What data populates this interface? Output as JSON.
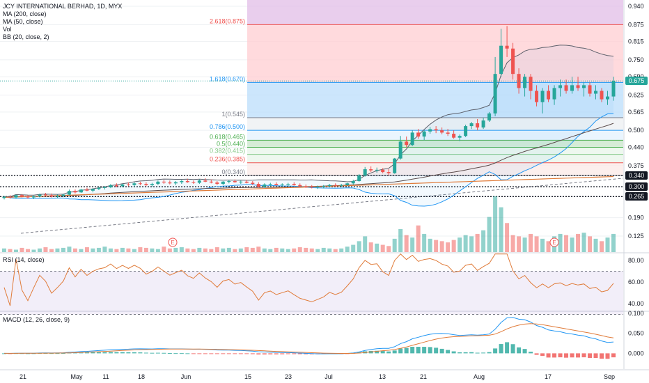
{
  "legend": {
    "title": "JCY INTERNATIONAL BERHAD, 1D, MYX",
    "ma200": "MA (200, close)",
    "ma50": "MA (50, close)",
    "vol": "Vol",
    "bb": "BB (20, close, 2)"
  },
  "panes": {
    "rsi": {
      "label": "RSI (14, close)"
    },
    "macd": {
      "label": "MACD (12, 26, close, 9)"
    }
  },
  "price_tags": {
    "last": {
      "text": "0.675",
      "color": "#26a69a"
    },
    "line1": {
      "text": "0.340",
      "color": "#131722"
    },
    "line2": {
      "text": "0.300",
      "color": "#131722"
    },
    "line3": {
      "text": "0.265",
      "color": "#131722"
    }
  },
  "colors": {
    "up": "#26a69a",
    "down": "#ef5350",
    "ma200": "#e07b39",
    "ma50": "#5a4a4a",
    "bb_upper": "#5d606b",
    "bb_lower": "#2196f3",
    "bb_basis": "#2196f3",
    "rsi": "#e07b39",
    "macd": "#2196f3",
    "signal": "#e07b39",
    "grid": "#eef0f3"
  },
  "chart_data": {
    "type": "candlestick",
    "symbol": "JCY INTERNATIONAL BERHAD",
    "timeframe": "1D",
    "exchange": "MYX",
    "y_ticks": [
      0.94,
      0.875,
      0.815,
      0.75,
      0.69,
      0.625,
      0.565,
      0.5,
      0.44,
      0.375,
      0.34,
      0.3,
      0.265,
      0.19,
      0.125
    ],
    "y_tick_labels": [
      "0.940",
      "0.875",
      "0.815",
      "0.750",
      "0.690",
      "0.625",
      "0.565",
      "0.500",
      "0.440",
      "0.375",
      "0.340",
      "0.300",
      "0.265",
      "0.190",
      "0.125"
    ],
    "x_labels": [
      "21",
      "May",
      "11",
      "18",
      "Jun",
      "15",
      "23",
      "Jul",
      "13",
      "21",
      "Aug",
      "17",
      "Sep"
    ],
    "fib_levels": [
      {
        "label": "2.618(0.875)",
        "value": 0.875
      },
      {
        "label": "1.618(0.670)",
        "value": 0.67
      },
      {
        "label": "1(0.545)",
        "value": 0.545
      },
      {
        "label": "0.786(0.500)",
        "value": 0.5
      },
      {
        "label": "0.618(0.465)",
        "value": 0.465
      },
      {
        "label": "0.5(0.440)",
        "value": 0.44
      },
      {
        "label": "0.382(0.415)",
        "value": 0.415
      },
      {
        "label": "0.236(0.385)",
        "value": 0.385
      },
      {
        "label": "0(0.340)",
        "value": 0.34
      }
    ],
    "horizontal_lines": [
      0.34,
      0.3,
      0.265
    ],
    "candles": [
      [
        0.26,
        0.268,
        0.255,
        0.264
      ],
      [
        0.264,
        0.27,
        0.258,
        0.262
      ],
      [
        0.262,
        0.272,
        0.258,
        0.27
      ],
      [
        0.27,
        0.274,
        0.262,
        0.265
      ],
      [
        0.265,
        0.27,
        0.258,
        0.262
      ],
      [
        0.262,
        0.268,
        0.256,
        0.266
      ],
      [
        0.266,
        0.275,
        0.262,
        0.272
      ],
      [
        0.272,
        0.278,
        0.268,
        0.27
      ],
      [
        0.27,
        0.276,
        0.262,
        0.265
      ],
      [
        0.265,
        0.272,
        0.26,
        0.268
      ],
      [
        0.268,
        0.275,
        0.264,
        0.272
      ],
      [
        0.272,
        0.29,
        0.27,
        0.285
      ],
      [
        0.285,
        0.29,
        0.276,
        0.28
      ],
      [
        0.28,
        0.292,
        0.278,
        0.29
      ],
      [
        0.29,
        0.296,
        0.284,
        0.286
      ],
      [
        0.286,
        0.294,
        0.28,
        0.292
      ],
      [
        0.292,
        0.3,
        0.288,
        0.296
      ],
      [
        0.296,
        0.302,
        0.29,
        0.298
      ],
      [
        0.298,
        0.31,
        0.295,
        0.305
      ],
      [
        0.305,
        0.312,
        0.298,
        0.302
      ],
      [
        0.302,
        0.31,
        0.298,
        0.308
      ],
      [
        0.308,
        0.315,
        0.302,
        0.306
      ],
      [
        0.306,
        0.316,
        0.3,
        0.312
      ],
      [
        0.312,
        0.318,
        0.305,
        0.31
      ],
      [
        0.31,
        0.316,
        0.302,
        0.306
      ],
      [
        0.306,
        0.314,
        0.3,
        0.31
      ],
      [
        0.31,
        0.322,
        0.306,
        0.318
      ],
      [
        0.318,
        0.325,
        0.31,
        0.315
      ],
      [
        0.315,
        0.322,
        0.308,
        0.312
      ],
      [
        0.312,
        0.32,
        0.306,
        0.316
      ],
      [
        0.316,
        0.324,
        0.31,
        0.32
      ],
      [
        0.32,
        0.328,
        0.314,
        0.316
      ],
      [
        0.316,
        0.322,
        0.31,
        0.314
      ],
      [
        0.314,
        0.326,
        0.31,
        0.322
      ],
      [
        0.322,
        0.33,
        0.316,
        0.318
      ],
      [
        0.318,
        0.326,
        0.312,
        0.315
      ],
      [
        0.315,
        0.32,
        0.306,
        0.31
      ],
      [
        0.31,
        0.32,
        0.306,
        0.318
      ],
      [
        0.318,
        0.324,
        0.312,
        0.32
      ],
      [
        0.32,
        0.326,
        0.314,
        0.316
      ],
      [
        0.316,
        0.322,
        0.31,
        0.318
      ],
      [
        0.318,
        0.324,
        0.312,
        0.314
      ],
      [
        0.314,
        0.32,
        0.306,
        0.31
      ],
      [
        0.31,
        0.316,
        0.296,
        0.3
      ],
      [
        0.3,
        0.312,
        0.296,
        0.308
      ],
      [
        0.308,
        0.314,
        0.302,
        0.31
      ],
      [
        0.31,
        0.316,
        0.304,
        0.306
      ],
      [
        0.306,
        0.312,
        0.3,
        0.308
      ],
      [
        0.308,
        0.314,
        0.302,
        0.31
      ],
      [
        0.31,
        0.316,
        0.304,
        0.306
      ],
      [
        0.306,
        0.312,
        0.298,
        0.302
      ],
      [
        0.302,
        0.308,
        0.296,
        0.3
      ],
      [
        0.3,
        0.306,
        0.294,
        0.298
      ],
      [
        0.298,
        0.304,
        0.292,
        0.3
      ],
      [
        0.3,
        0.306,
        0.294,
        0.302
      ],
      [
        0.302,
        0.31,
        0.298,
        0.306
      ],
      [
        0.306,
        0.312,
        0.3,
        0.304
      ],
      [
        0.304,
        0.31,
        0.298,
        0.306
      ],
      [
        0.306,
        0.314,
        0.302,
        0.312
      ],
      [
        0.312,
        0.325,
        0.308,
        0.32
      ],
      [
        0.32,
        0.345,
        0.318,
        0.34
      ],
      [
        0.34,
        0.37,
        0.336,
        0.362
      ],
      [
        0.362,
        0.372,
        0.352,
        0.358
      ],
      [
        0.358,
        0.368,
        0.35,
        0.36
      ],
      [
        0.36,
        0.366,
        0.348,
        0.352
      ],
      [
        0.352,
        0.362,
        0.34,
        0.348
      ],
      [
        0.348,
        0.402,
        0.346,
        0.4
      ],
      [
        0.4,
        0.48,
        0.396,
        0.46
      ],
      [
        0.46,
        0.478,
        0.44,
        0.448
      ],
      [
        0.448,
        0.5,
        0.444,
        0.492
      ],
      [
        0.492,
        0.505,
        0.47,
        0.478
      ],
      [
        0.478,
        0.5,
        0.465,
        0.496
      ],
      [
        0.496,
        0.512,
        0.488,
        0.504
      ],
      [
        0.504,
        0.515,
        0.49,
        0.5
      ],
      [
        0.5,
        0.51,
        0.486,
        0.492
      ],
      [
        0.492,
        0.505,
        0.48,
        0.488
      ],
      [
        0.488,
        0.5,
        0.47,
        0.474
      ],
      [
        0.474,
        0.485,
        0.462,
        0.48
      ],
      [
        0.48,
        0.52,
        0.476,
        0.515
      ],
      [
        0.515,
        0.53,
        0.505,
        0.525
      ],
      [
        0.525,
        0.54,
        0.5,
        0.51
      ],
      [
        0.51,
        0.545,
        0.505,
        0.535
      ],
      [
        0.535,
        0.565,
        0.53,
        0.56
      ],
      [
        0.56,
        0.76,
        0.55,
        0.7
      ],
      [
        0.7,
        0.86,
        0.69,
        0.8
      ],
      [
        0.8,
        0.87,
        0.76,
        0.79
      ],
      [
        0.79,
        0.81,
        0.68,
        0.7
      ],
      [
        0.7,
        0.72,
        0.63,
        0.65
      ],
      [
        0.65,
        0.7,
        0.62,
        0.69
      ],
      [
        0.69,
        0.7,
        0.61,
        0.64
      ],
      [
        0.64,
        0.66,
        0.585,
        0.6
      ],
      [
        0.6,
        0.65,
        0.56,
        0.64
      ],
      [
        0.64,
        0.66,
        0.6,
        0.61
      ],
      [
        0.61,
        0.66,
        0.59,
        0.65
      ],
      [
        0.65,
        0.68,
        0.62,
        0.66
      ],
      [
        0.66,
        0.68,
        0.63,
        0.64
      ],
      [
        0.64,
        0.69,
        0.63,
        0.66
      ],
      [
        0.66,
        0.69,
        0.64,
        0.65
      ],
      [
        0.65,
        0.67,
        0.62,
        0.66
      ],
      [
        0.66,
        0.67,
        0.62,
        0.63
      ],
      [
        0.63,
        0.66,
        0.61,
        0.64
      ],
      [
        0.64,
        0.65,
        0.6,
        0.61
      ],
      [
        0.61,
        0.64,
        0.59,
        0.62
      ],
      [
        0.62,
        0.69,
        0.605,
        0.675
      ]
    ],
    "volume": [
      6,
      5,
      4,
      7,
      5,
      4,
      6,
      8,
      5,
      6,
      7,
      9,
      6,
      5,
      8,
      6,
      7,
      9,
      6,
      5,
      7,
      6,
      5,
      8,
      7,
      6,
      5,
      9,
      6,
      7,
      8,
      6,
      5,
      7,
      6,
      5,
      8,
      6,
      7,
      5,
      6,
      8,
      7,
      9,
      6,
      5,
      7,
      6,
      5,
      6,
      8,
      7,
      6,
      5,
      7,
      6,
      5,
      6,
      9,
      12,
      18,
      26,
      16,
      14,
      12,
      10,
      22,
      38,
      28,
      24,
      44,
      30,
      22,
      20,
      18,
      16,
      20,
      24,
      28,
      26,
      30,
      36,
      58,
      92,
      74,
      48,
      28,
      26,
      24,
      30,
      26,
      22,
      18,
      26,
      30,
      28,
      24,
      30,
      32,
      26,
      22,
      18,
      24,
      30
    ],
    "rsi_ticks": [
      80,
      60,
      40
    ],
    "macd_ticks": [
      0.1,
      0.05,
      0.0
    ],
    "macd_tick_labels": [
      "0.100",
      "0.050",
      "0.000"
    ]
  }
}
